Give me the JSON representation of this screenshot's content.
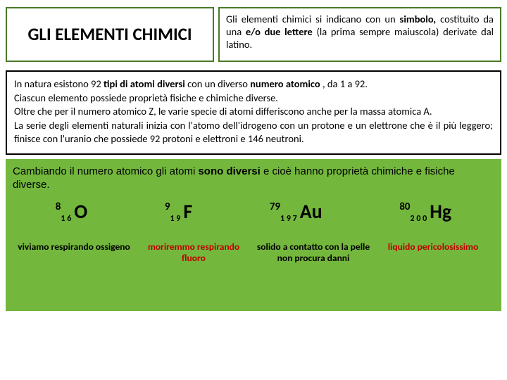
{
  "header": {
    "title": "GLI ELEMENTI CHIMICI",
    "desc_prefix": "Gli elementi chimici si indicano con un ",
    "desc_bold1": "simbolo,",
    "desc_mid1": " costituito da una ",
    "desc_bold2": "e/o due lettere ",
    "desc_mid2": "(la prima sempre maiuscola) derivate dal latino."
  },
  "middle": {
    "p1_a": "In natura esistono 92 ",
    "p1_b": "tipi di atomi diversi ",
    "p1_c": "con un diverso ",
    "p1_d": "numero atomico ",
    "p1_e": ", da 1 a 92.",
    "p2": "Ciascun elemento possiede proprietà fisiche e chimiche diverse.",
    "p3": "Oltre che per il numero atomico Z, le varie specie di atomi differiscono anche per la massa atomica A.",
    "p4": "La serie degli elementi naturali inizia con l'atomo dell'idrogeno con un protone e un elettrone che è il più leggero; finisce con l'uranio che possiede 92 protoni e elettroni e 146 neutroni."
  },
  "green": {
    "intro_a": "Cambiando il numero atomico gli atomi ",
    "intro_b": "sono diversi",
    "intro_c": " e cioè hanno proprietà chimiche e fisiche diverse.",
    "elements": {
      "e1": {
        "z": "8",
        "a": "1 6",
        "sym": "O"
      },
      "e2": {
        "z": "9",
        "a": "1 9",
        "sym": "F"
      },
      "e3": {
        "z": "79",
        "a": "1 9 7",
        "sym": "Au"
      },
      "e4": {
        "z": "80",
        "a": "2 0 0",
        "sym": "Hg"
      }
    },
    "labels": {
      "l1": "viviamo respirando ossigeno",
      "l2": "moriremmo respirando fluoro",
      "l3": "solido\na contatto con la pelle non procura danni",
      "l4": "liquido pericolosissimo"
    },
    "panel_color": "#73b73d"
  },
  "colors": {
    "border_green": "#4a7a2a",
    "border_black": "#000000",
    "text_red": "#c00000",
    "bg": "#ffffff"
  }
}
